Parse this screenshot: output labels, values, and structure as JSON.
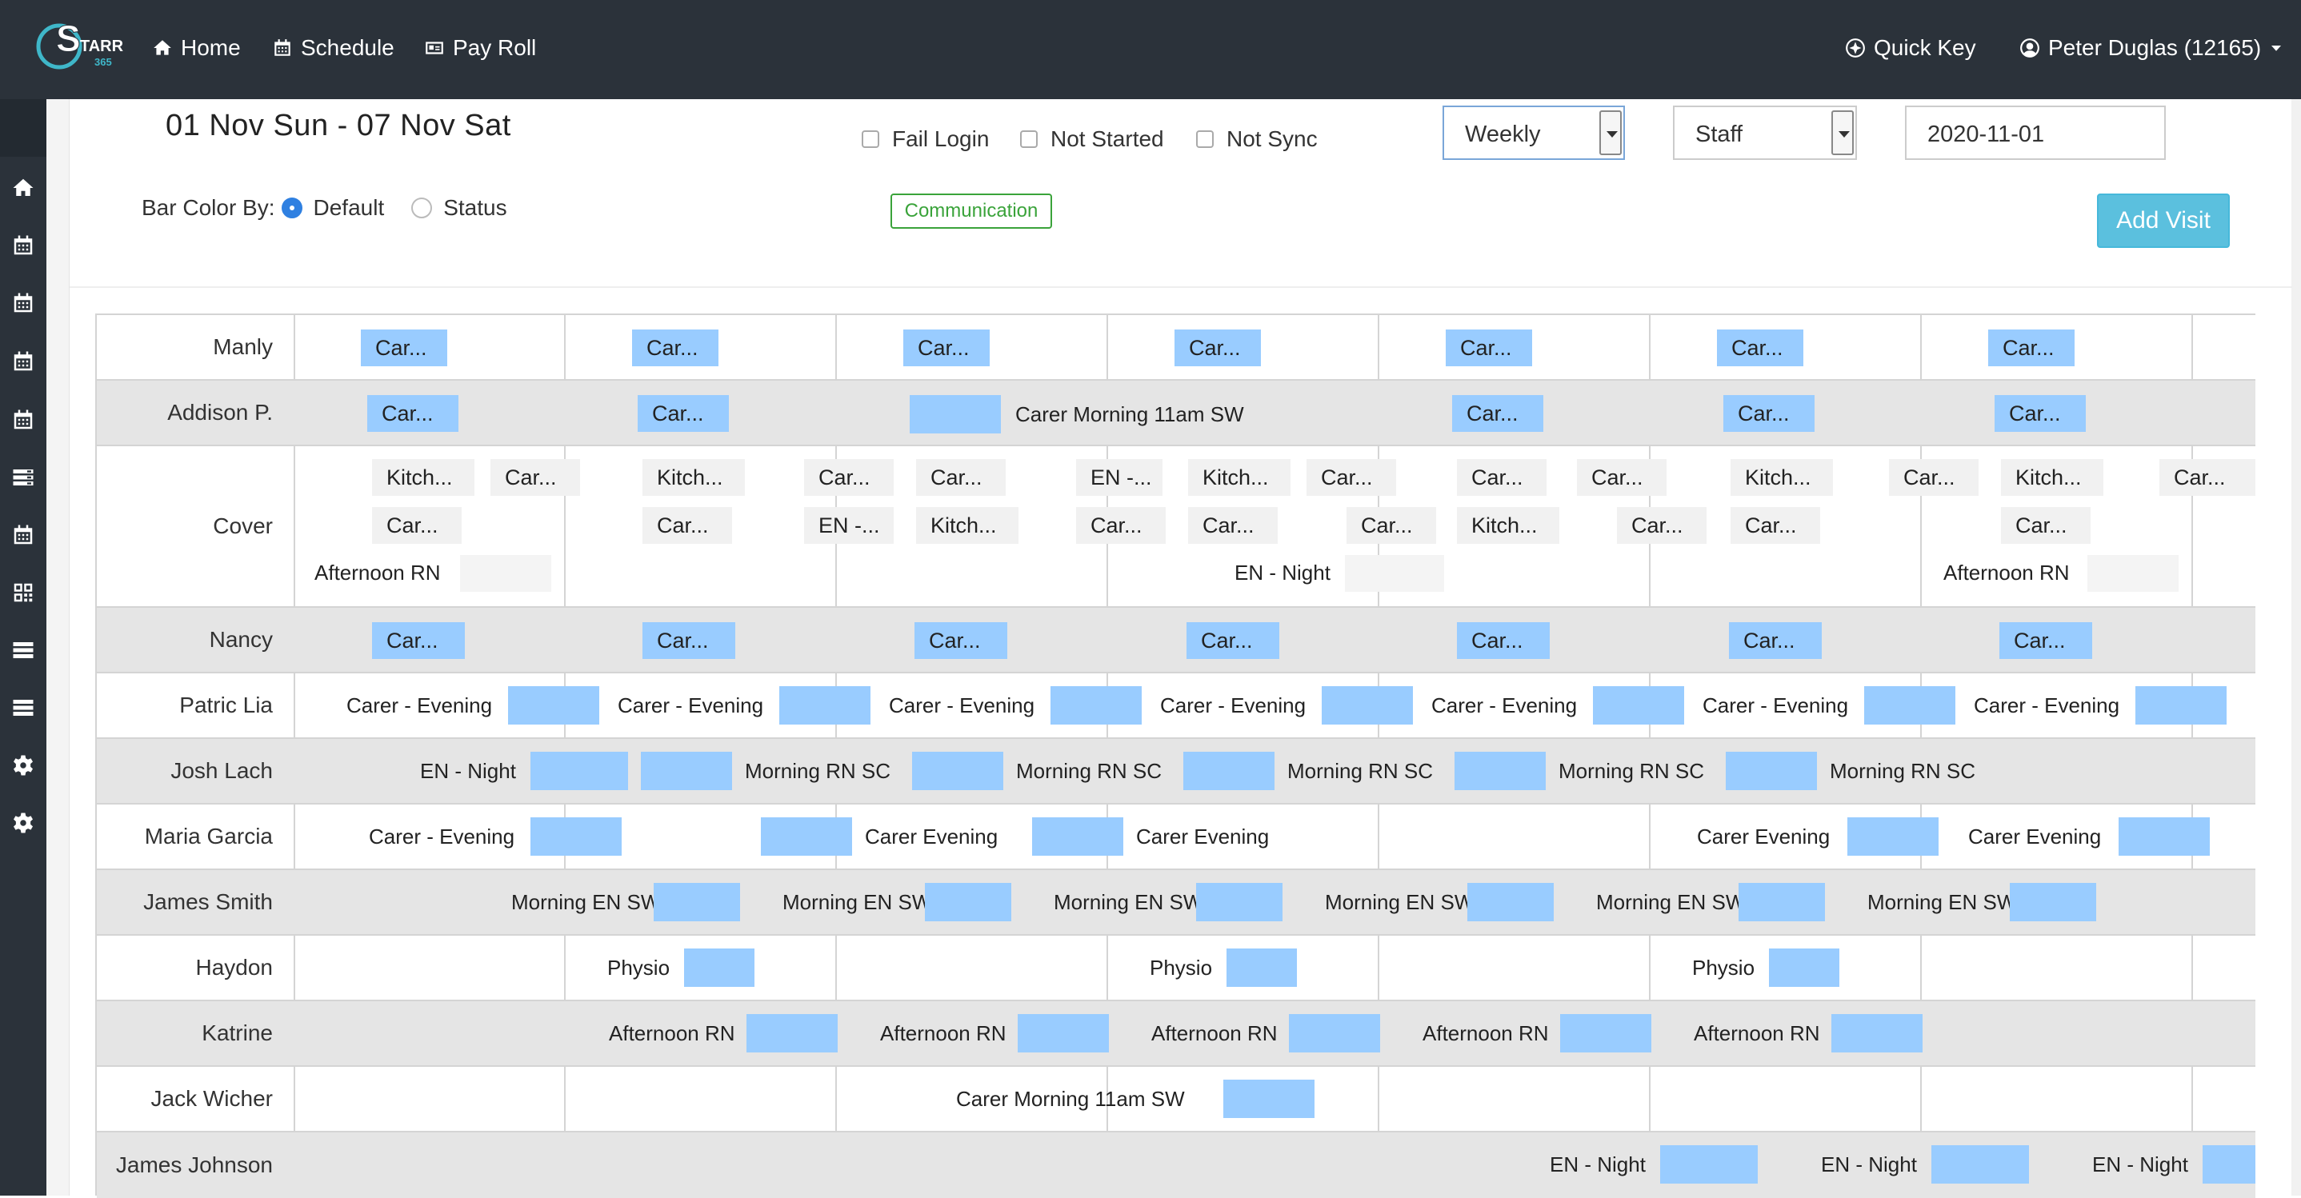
{
  "app": {
    "logo_text": "STARR",
    "logo_sub": "365"
  },
  "nav": {
    "home": "Home",
    "schedule": "Schedule",
    "payroll": "Pay Roll",
    "quick_key": "Quick Key",
    "user": "Peter Duglas (12165)"
  },
  "header": {
    "range": "01 Nov Sun - 07 Nov Sat",
    "bar_color_label": "Bar Color By:",
    "default_label": "Default",
    "status_label": "Status",
    "communication": "Communication",
    "add_visit": "Add Visit"
  },
  "filters": {
    "fail_login": "Fail Login",
    "not_started": "Not Started",
    "not_sync": "Not Sync",
    "view": "Weekly",
    "group": "Staff",
    "date": "2020-11-01"
  },
  "colors": {
    "topbar": "#2b323a",
    "bar": "#99ccff",
    "add_visit": "#5bc0de",
    "communication": "#3aa33a"
  },
  "staff": [
    "Manly",
    "Addison P.",
    "Cover",
    "Nancy",
    "Patric Lia",
    "Josh Lach",
    "Maria Garcia",
    "James Smith",
    "Haydon",
    "Katrine",
    "Jack Wicher",
    "James Johnson"
  ],
  "shifts": {
    "car": "Car...",
    "kitch": "Kitch...",
    "en_short": "EN -...",
    "carer_morning_11": "Carer Morning 11am SW",
    "afternoon_rn": "Afternoon RN",
    "en_night": "EN - Night",
    "carer_dash_evening": "Carer - Evening",
    "morning_rn_sc": "Morning RN SC",
    "carer_evening": "Carer Evening",
    "morning_en_sw": "Morning EN SW",
    "physio": "Physio"
  }
}
